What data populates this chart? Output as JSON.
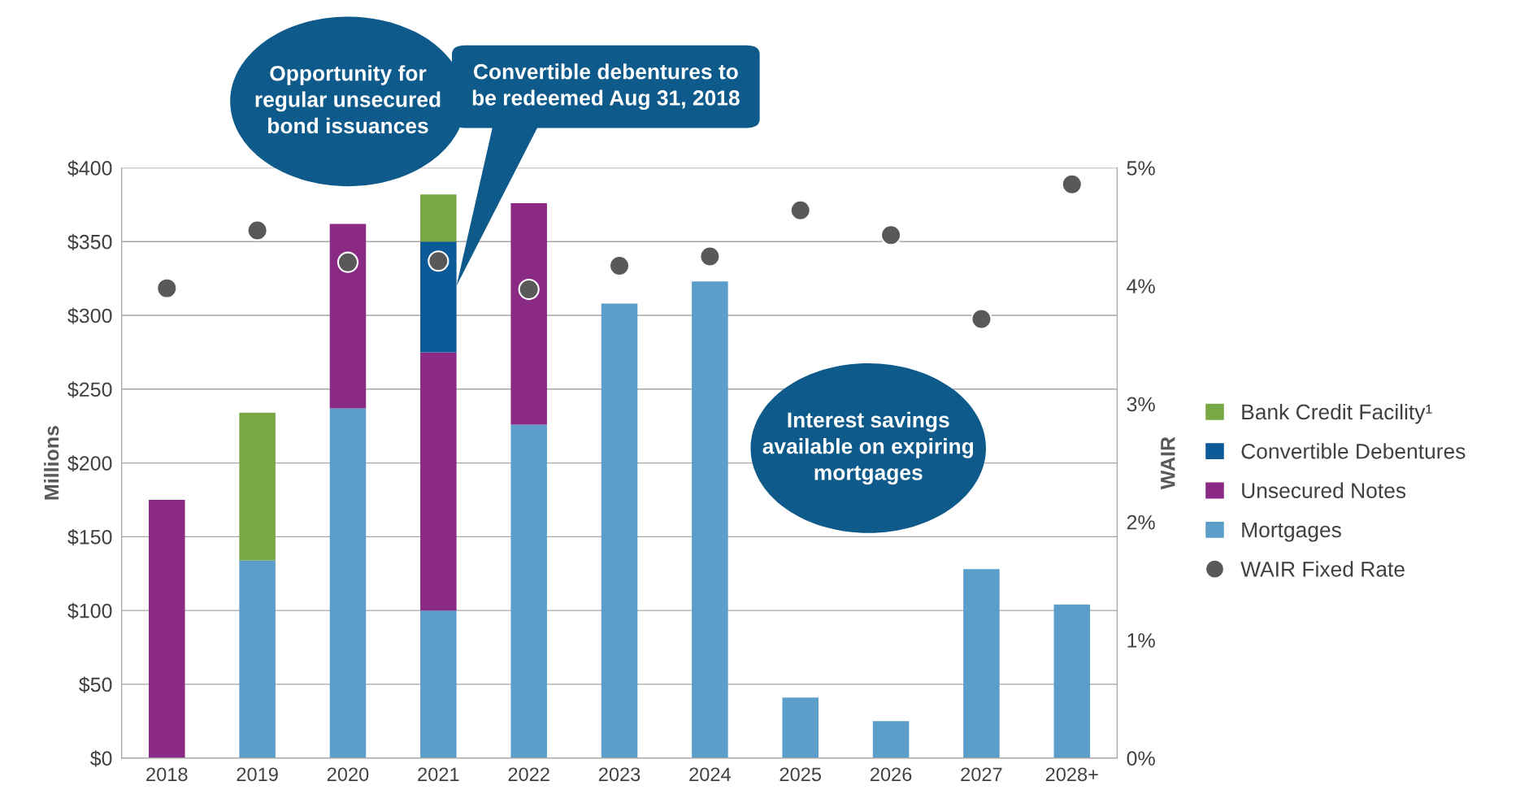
{
  "chart_data": {
    "type": "bar",
    "stacked": true,
    "categories": [
      "2018",
      "2019",
      "2020",
      "2021",
      "2022",
      "2023",
      "2024",
      "2025",
      "2026",
      "2027",
      "2028+"
    ],
    "series": [
      {
        "name": "Mortgages",
        "color": "#5b9ec9",
        "values": [
          0,
          134,
          237,
          100,
          226,
          308,
          323,
          41,
          25,
          128,
          104
        ]
      },
      {
        "name": "Unsecured Notes",
        "color": "#8b2a84",
        "values": [
          175,
          0,
          125,
          175,
          150,
          0,
          0,
          0,
          0,
          0,
          0
        ]
      },
      {
        "name": "Convertible Debentures",
        "color": "#0d5a99",
        "values": [
          0,
          0,
          0,
          75,
          0,
          0,
          0,
          0,
          0,
          0,
          0
        ]
      },
      {
        "name": "Bank Credit Facility¹",
        "color": "#78a843",
        "values": [
          0,
          100,
          0,
          32,
          0,
          0,
          0,
          0,
          0,
          0,
          0
        ]
      },
      {
        "name": "WAIR Fixed Rate",
        "type": "scatter",
        "axis": "y2",
        "color": "#595959",
        "marker": "circle",
        "values": [
          3.98,
          4.47,
          4.2,
          4.21,
          3.97,
          4.17,
          4.25,
          4.64,
          4.43,
          3.72,
          4.86
        ]
      }
    ],
    "ylabel": "Millions",
    "y2label": "WAIR",
    "ylim": [
      0,
      400
    ],
    "yticks": [
      {
        "value": 0,
        "label": "$0"
      },
      {
        "value": 50,
        "label": "$50"
      },
      {
        "value": 100,
        "label": "$100"
      },
      {
        "value": 150,
        "label": "$150"
      },
      {
        "value": 200,
        "label": "$200"
      },
      {
        "value": 250,
        "label": "$250"
      },
      {
        "value": 300,
        "label": "$300"
      },
      {
        "value": 350,
        "label": "$350"
      },
      {
        "value": 400,
        "label": "$400"
      }
    ],
    "y2lim": [
      0,
      5
    ],
    "y2ticks": [
      {
        "value": 0,
        "label": "0%"
      },
      {
        "value": 1,
        "label": "1%"
      },
      {
        "value": 2,
        "label": "2%"
      },
      {
        "value": 3,
        "label": "3%"
      },
      {
        "value": 4,
        "label": "4%"
      },
      {
        "value": 5,
        "label": "5%"
      }
    ],
    "grid": "y",
    "legend": "right",
    "annotations": [
      "Opportunity for\nregular unsecured\nbond issuances",
      "Convertible debentures to\nbe redeemed Aug 31, 2018",
      "Interest savings\navailable on expiring\nmortgages"
    ]
  }
}
